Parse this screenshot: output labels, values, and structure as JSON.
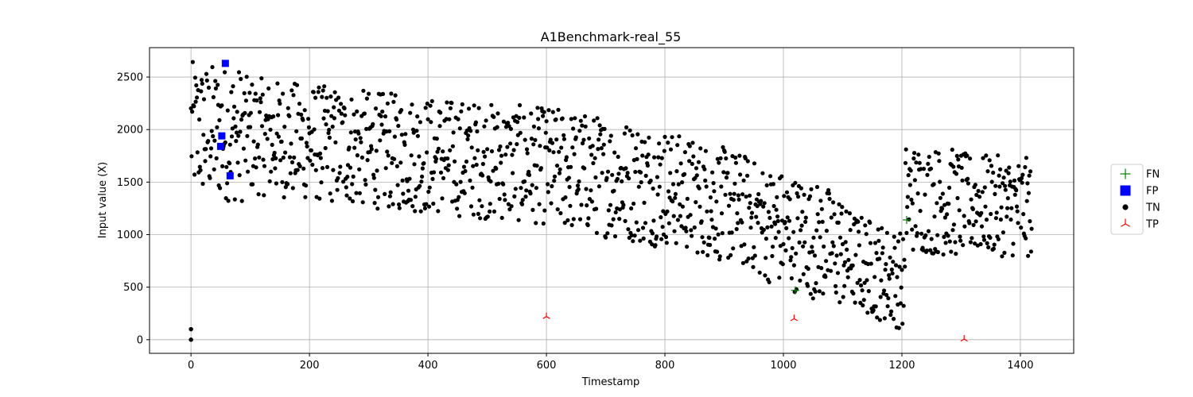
{
  "chart_data": {
    "type": "scatter",
    "title": "A1Benchmark-real_55",
    "xlabel": "Timestamp",
    "ylabel": "Input value (X)",
    "xlim": [
      -70,
      1490
    ],
    "ylim": [
      -130,
      2780
    ],
    "xticks": [
      0,
      200,
      400,
      600,
      800,
      1000,
      1200,
      1400
    ],
    "yticks": [
      0,
      500,
      1000,
      1500,
      2000,
      2500
    ],
    "grid": true,
    "legend_position": "right",
    "tn_profile": {
      "count": 1420,
      "segments": [
        {
          "x0": 0,
          "x1": 90,
          "y0": 2000,
          "y1": 1950,
          "amp": 650
        },
        {
          "x0": 90,
          "x1": 320,
          "y0": 1950,
          "y1": 1800,
          "amp": 560
        },
        {
          "x0": 320,
          "x1": 600,
          "y0": 1800,
          "y1": 1650,
          "amp": 560
        },
        {
          "x0": 600,
          "x1": 800,
          "y0": 1650,
          "y1": 1450,
          "amp": 580
        },
        {
          "x0": 800,
          "x1": 950,
          "y0": 1450,
          "y1": 1200,
          "amp": 550
        },
        {
          "x0": 950,
          "x1": 1100,
          "y0": 1150,
          "y1": 850,
          "amp": 560
        },
        {
          "x0": 1100,
          "x1": 1205,
          "y0": 800,
          "y1": 550,
          "amp": 470
        },
        {
          "x0": 1205,
          "x1": 1300,
          "y0": 1350,
          "y1": 1300,
          "amp": 520
        },
        {
          "x0": 1300,
          "x1": 1425,
          "y0": 1300,
          "y1": 1250,
          "amp": 480
        }
      ]
    },
    "series": [
      {
        "name": "FN",
        "color": "#008000",
        "marker": "plus",
        "points": [
          [
            1020,
            470
          ],
          [
            1208,
            1140
          ]
        ]
      },
      {
        "name": "FP",
        "color": "#0000ff",
        "marker": "square",
        "points": [
          [
            58,
            2630
          ],
          [
            52,
            1940
          ],
          [
            50,
            1840
          ],
          [
            66,
            1560
          ]
        ]
      },
      {
        "name": "TN",
        "color": "#000000",
        "marker": "circle",
        "points": [
          [
            0,
            100
          ],
          [
            0,
            0
          ]
        ]
      },
      {
        "name": "TP",
        "color": "#ff0000",
        "marker": "tri_up",
        "points": [
          [
            600,
            220
          ],
          [
            1018,
            200
          ],
          [
            1305,
            5
          ]
        ]
      }
    ]
  }
}
